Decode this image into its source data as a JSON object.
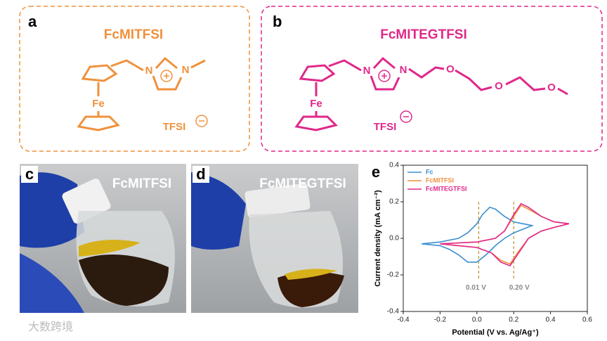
{
  "panels": {
    "a": {
      "label": "a",
      "title": "FcMITFSI",
      "atoms": [
        "N",
        "N",
        "Fe"
      ],
      "anion": "TFSI"
    },
    "b": {
      "label": "b",
      "title": "FcMITEGTFSI",
      "atoms": [
        "N",
        "N",
        "Fe",
        "O",
        "O",
        "O"
      ],
      "anion": "TFSI"
    },
    "c": {
      "label": "c",
      "title": "FcMITFSI"
    },
    "d": {
      "label": "d",
      "title": "FcMITEGTFSI"
    },
    "e": {
      "label": "e"
    }
  },
  "watermark": "大数跨境",
  "chart_data": {
    "type": "line",
    "xlabel": "Potential (V vs. Ag/Ag⁺)",
    "ylabel": "Current density (mA cm⁻²)",
    "xlim": [
      -0.4,
      0.6
    ],
    "xticks": [
      -0.4,
      -0.2,
      {
        "value": 0,
        "label": "0.0"
      },
      0.2,
      0.4,
      0.6
    ],
    "ylim": [
      -0.4,
      0.4
    ],
    "yticks": [
      -0.4,
      -0.2,
      {
        "value": 0,
        "label": "0.0"
      },
      0.2,
      0.4
    ],
    "legend": "upper left",
    "annotations": [
      {
        "text": "0.01 V",
        "x": 0.01
      },
      {
        "text": "0.20 V",
        "x": 0.2
      }
    ],
    "series": [
      {
        "name": "Fc",
        "color": "#3a8fd0",
        "x": [
          -0.3,
          -0.2,
          -0.1,
          -0.05,
          0,
          0.03,
          0.07,
          0.1,
          0.15,
          0.2,
          0.25,
          0.3,
          0.25,
          0.2,
          0.15,
          0.1,
          0.05,
          0,
          -0.05,
          -0.1,
          -0.15,
          -0.2,
          -0.3
        ],
        "values": [
          -0.03,
          -0.02,
          0.0,
          0.03,
          0.08,
          0.13,
          0.17,
          0.16,
          0.12,
          0.09,
          0.08,
          0.07,
          0.05,
          0.03,
          0.0,
          -0.04,
          -0.09,
          -0.13,
          -0.13,
          -0.09,
          -0.06,
          -0.04,
          -0.03
        ]
      },
      {
        "name": "FcMITFSI",
        "color": "#f0913c",
        "x": [
          -0.2,
          0,
          0.1,
          0.15,
          0.2,
          0.24,
          0.28,
          0.35,
          0.42,
          0.5,
          0.42,
          0.35,
          0.28,
          0.22,
          0.18,
          0.13,
          0.08,
          0,
          -0.1,
          -0.2
        ],
        "values": [
          -0.03,
          -0.02,
          0.0,
          0.04,
          0.12,
          0.18,
          0.16,
          0.12,
          0.09,
          0.08,
          0.06,
          0.04,
          0.0,
          -0.08,
          -0.14,
          -0.12,
          -0.08,
          -0.05,
          -0.04,
          -0.03
        ]
      },
      {
        "name": "FcMITEGTFSI",
        "color": "#e0288a",
        "x": [
          -0.2,
          0,
          0.1,
          0.15,
          0.2,
          0.24,
          0.28,
          0.35,
          0.42,
          0.5,
          0.42,
          0.35,
          0.28,
          0.22,
          0.18,
          0.13,
          0.08,
          0,
          -0.1,
          -0.2
        ],
        "values": [
          -0.03,
          -0.02,
          0.0,
          0.04,
          0.13,
          0.19,
          0.17,
          0.12,
          0.09,
          0.08,
          0.06,
          0.04,
          0.0,
          -0.09,
          -0.15,
          -0.13,
          -0.08,
          -0.05,
          -0.04,
          -0.03
        ]
      }
    ]
  }
}
